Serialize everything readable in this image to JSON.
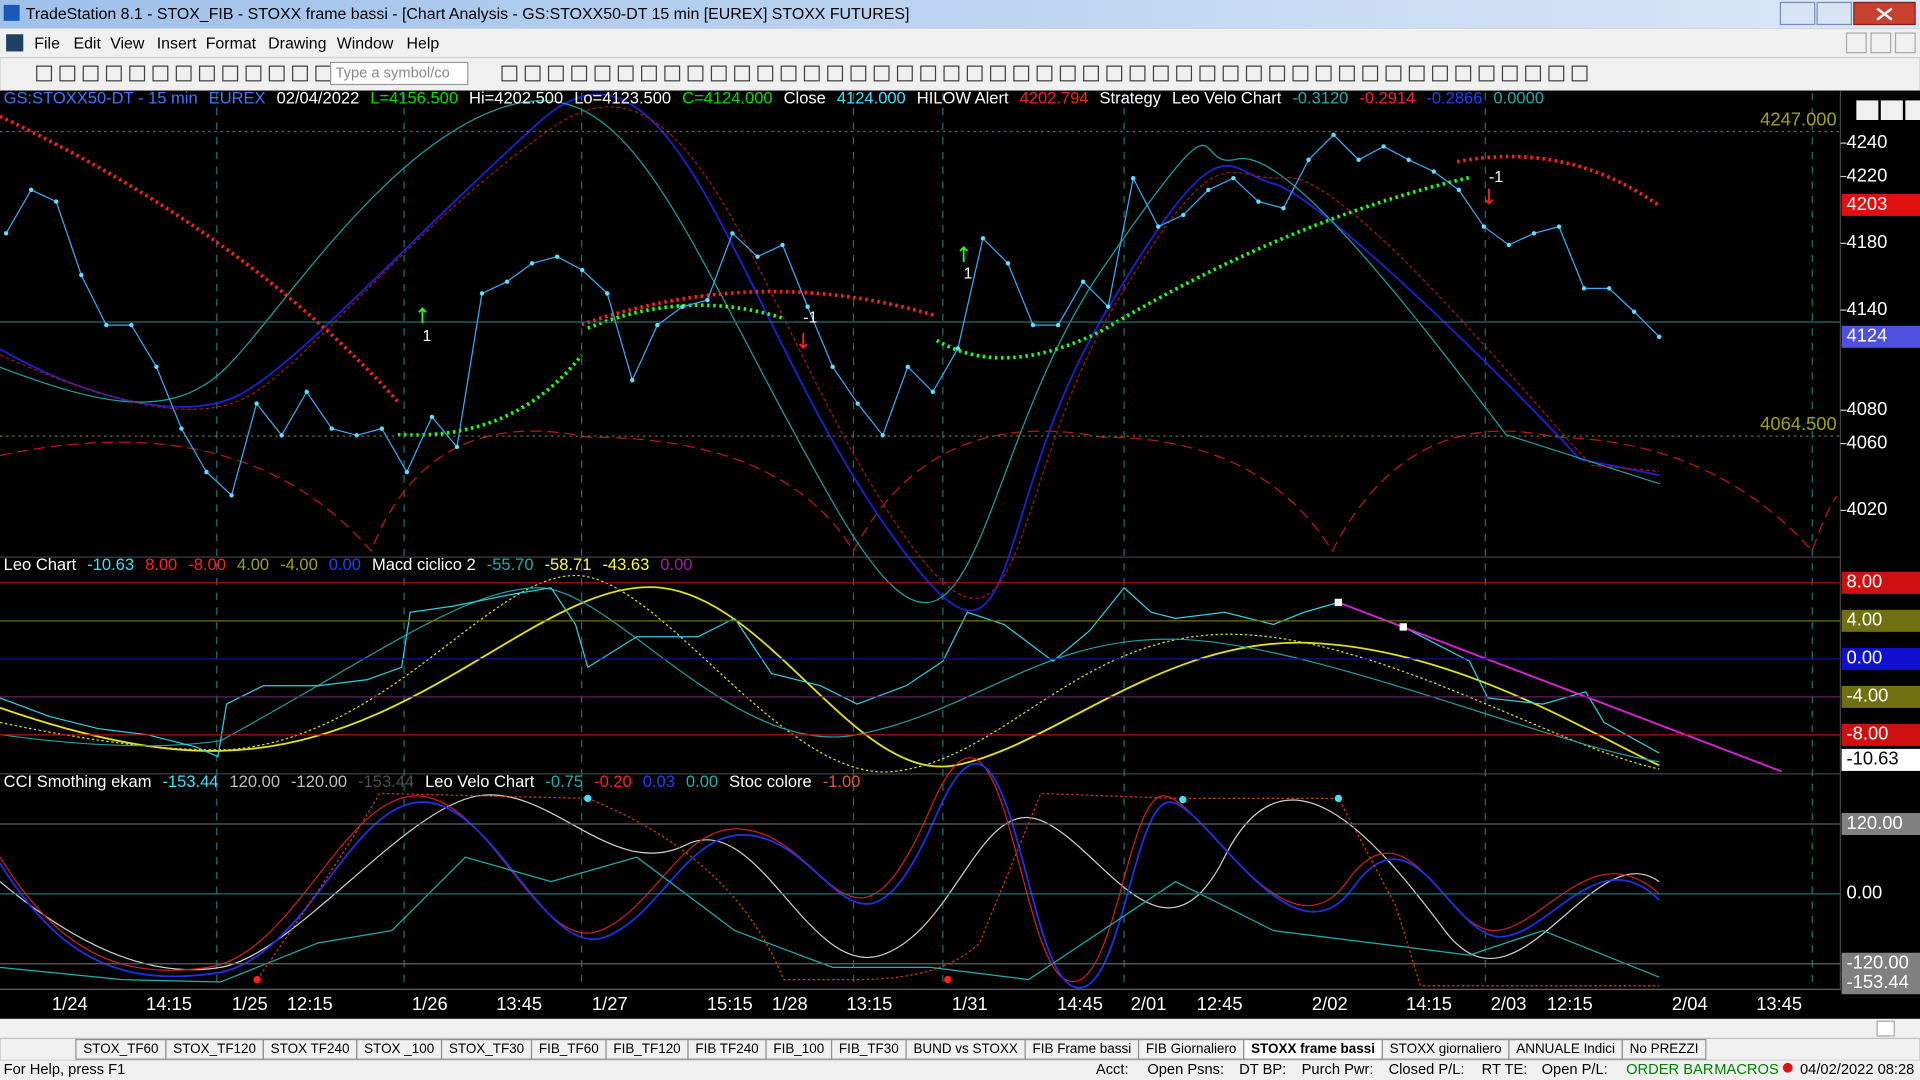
{
  "window": {
    "title": "TradeStation 8.1 - STOX_FIB - STOXX frame bassi - [Chart Analysis - GS:STOXX50-DT  15 min  [EUREX] STOXX FUTURES]"
  },
  "menu": [
    "File",
    "Edit",
    "View",
    "Insert",
    "Format",
    "Drawing",
    "Window",
    "Help"
  ],
  "toolbar": {
    "symbol_box": "Type a symbol/co"
  },
  "legends": [
    [
      {
        "text": "GS:STOXX50-DT - 15 min",
        "color": "#3c78ff"
      },
      {
        "text": "EUREX",
        "color": "#3c78ff"
      },
      {
        "text": "02/04/2022",
        "color": "#ffffff"
      },
      {
        "text": "L=4156.500",
        "color": "#00e000"
      },
      {
        "text": "Hi=4202.500",
        "color": "#ffffff"
      },
      {
        "text": "Lo=4123.500",
        "color": "#ffffff"
      },
      {
        "text": "C=4124.000",
        "color": "#00e000"
      },
      {
        "text": "Close",
        "color": "#ffffff"
      },
      {
        "text": "4124.000",
        "color": "#40e0ff"
      },
      {
        "text": "HILOW Alert",
        "color": "#ffffff"
      },
      {
        "text": "4202.794",
        "color": "#ff2020"
      },
      {
        "text": "Strategy",
        "color": "#ffffff"
      },
      {
        "text": "Leo Velo Chart",
        "color": "#ffffff"
      },
      {
        "text": "-0.3120",
        "color": "#20b0b0"
      },
      {
        "text": "-0.2914",
        "color": "#ff2020"
      },
      {
        "text": "-0.2866",
        "color": "#2040ff"
      },
      {
        "text": "0.0000",
        "color": "#20b0b0"
      }
    ],
    [
      {
        "text": "Leo Chart",
        "color": "#ffffff"
      },
      {
        "text": "-10.63",
        "color": "#40e0ff"
      },
      {
        "text": "8.00",
        "color": "#ff2020"
      },
      {
        "text": "-8.00",
        "color": "#ff2020"
      },
      {
        "text": "4.00",
        "color": "#a0a020"
      },
      {
        "text": "-4.00",
        "color": "#a0a020"
      },
      {
        "text": "0.00",
        "color": "#2040ff"
      },
      {
        "text": "Macd ciclico 2",
        "color": "#ffffff"
      },
      {
        "text": "-55.70",
        "color": "#20b0b0"
      },
      {
        "text": "-58.71",
        "color": "#ffff40"
      },
      {
        "text": "-43.63",
        "color": "#ffff40"
      },
      {
        "text": "0.00",
        "color": "#a020a0"
      }
    ],
    [
      {
        "text": "CCI Smothing ekam",
        "color": "#ffffff"
      },
      {
        "text": "-153.44",
        "color": "#40e0ff"
      },
      {
        "text": "120.00",
        "color": "#c0c0c0"
      },
      {
        "text": "-120.00",
        "color": "#c0c0c0"
      },
      {
        "text": "-153.44",
        "color": "#505050"
      },
      {
        "text": "Leo Velo Chart",
        "color": "#ffffff"
      },
      {
        "text": "-0.75",
        "color": "#20b0b0"
      },
      {
        "text": "-0.20",
        "color": "#ff2020"
      },
      {
        "text": "0.03",
        "color": "#2040ff"
      },
      {
        "text": "0.00",
        "color": "#20b0b0"
      },
      {
        "text": "Stoc colore",
        "color": "#ffffff"
      },
      {
        "text": "-1.00",
        "color": "#e06020"
      }
    ]
  ],
  "chart_data": [
    {
      "type": "line",
      "color": "#3fa9f5",
      "ylim": [
        3992,
        4270
      ],
      "yticks": [
        4020,
        4060,
        4080,
        4140,
        4180,
        4220,
        4240
      ],
      "values": [
        4186,
        4212,
        4205,
        4161,
        4131,
        4131,
        4106,
        4069,
        4043,
        4029,
        4084,
        4065,
        4091,
        4069,
        4065,
        4069,
        4043,
        4076,
        4058,
        4150,
        4157,
        4168,
        4172,
        4164,
        4150,
        4098,
        4131,
        4142,
        4146,
        4186,
        4172,
        4179,
        4142,
        4106,
        4084,
        4065,
        4106,
        4091,
        4117,
        4183,
        4168,
        4131,
        4131,
        4157,
        4142,
        4219,
        4190,
        4197,
        4212,
        4219,
        4205,
        4201,
        4230,
        4245,
        4230,
        4238,
        4230,
        4223,
        4212,
        4190,
        4179,
        4186,
        4190,
        4153,
        4153,
        4139,
        4124
      ],
      "levels": [
        {
          "value": 4247,
          "label": "4247.000"
        },
        {
          "value": 4064.5,
          "label": "4064.500"
        }
      ],
      "tags": [
        {
          "value": 4203,
          "label": "4203"
        },
        {
          "value": 4124,
          "label": "4124"
        }
      ],
      "annotations": [
        "1",
        "-1",
        "1",
        "-1"
      ]
    },
    {
      "type": "indicator",
      "ylim": [
        -12.1,
        10.7
      ],
      "yticks": [
        {
          "value": 8,
          "label": "8.00"
        },
        {
          "value": 4,
          "label": "4.00"
        },
        {
          "value": 0,
          "label": "0.00"
        },
        {
          "value": -4,
          "label": "-4.00"
        },
        {
          "value": -8,
          "label": "-8.00"
        }
      ],
      "tags": [
        {
          "value": -10.63,
          "label": "-10.63"
        }
      ]
    },
    {
      "type": "indicator",
      "ylim": [
        -164,
        206
      ],
      "yticks": [
        {
          "value": 120,
          "label": "120.00"
        },
        {
          "value": 0,
          "label": "0.00"
        },
        {
          "value": -120,
          "label": "-120.00"
        }
      ],
      "tags": [
        {
          "value": -153.44,
          "label": "-153.44"
        }
      ]
    }
  ],
  "time_axis": [
    "1/24",
    "14:15",
    "1/25",
    "12:15",
    "1/26",
    "13:45",
    "1/27",
    "15:15",
    "1/28",
    "13:15",
    "1/31",
    "14:45",
    "2/01",
    "12:45",
    "2/02",
    "14:15",
    "2/03",
    "12:15",
    "2/04",
    "13:45"
  ],
  "tabs": [
    "STOX_TF60",
    "STOX_TF120",
    "STOX TF240",
    "STOX _100",
    "STOX_TF30",
    "FIB_TF60",
    "FIB_TF120",
    "FIB TF240",
    "FIB_100",
    "FIB_TF30",
    "BUND vs STOXX",
    "FIB Frame bassi",
    "FIB Giornaliero",
    "STOXX frame bassi",
    "STOXX giornaliero",
    "ANNUALE Indici",
    "No PREZZI"
  ],
  "status": [
    "For Help, press F1",
    "Acct:",
    "Open Psns:",
    "DT BP:",
    "Purch Pwr:",
    "Closed P/L:",
    "RT TE:",
    "Open P/L:",
    "ORDER BAR",
    "MACROS",
    "04/02/2022 08:28"
  ]
}
